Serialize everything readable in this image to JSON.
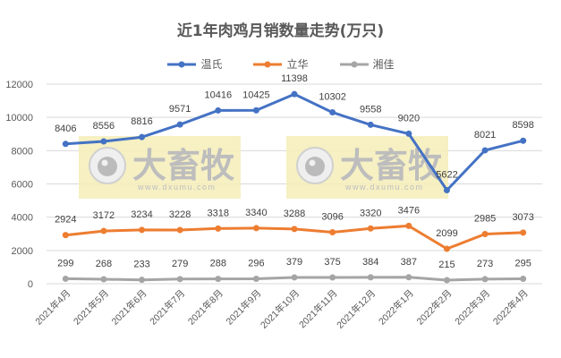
{
  "chart_data": {
    "type": "line",
    "title": "近1年肉鸡月销数量走势(万只)",
    "xlabel": "",
    "ylabel": "",
    "ylim": [
      0,
      12000
    ],
    "yticks": [
      0,
      2000,
      4000,
      6000,
      8000,
      10000,
      12000
    ],
    "grid": true,
    "legend_position": "top",
    "categories": [
      "2021年4月",
      "2021年5月",
      "2021年6月",
      "2021年7月",
      "2021年8月",
      "2021年9月",
      "2021年10月",
      "2021年11月",
      "2021年12月",
      "2022年1月",
      "2022年2月",
      "2022年3月",
      "2022年4月"
    ],
    "series": [
      {
        "name": "温氏",
        "color": "#4472C4",
        "values": [
          8406,
          8556,
          8816,
          9571,
          10416,
          10425,
          11398,
          10302,
          9558,
          9020,
          5622,
          8021,
          8598
        ]
      },
      {
        "name": "立华",
        "color": "#ED7D31",
        "values": [
          2924,
          3172,
          3234,
          3228,
          3318,
          3340,
          3288,
          3096,
          3320,
          3476,
          2099,
          2985,
          3073
        ]
      },
      {
        "name": "湘佳",
        "color": "#A5A5A5",
        "values": [
          299,
          268,
          233,
          279,
          288,
          296,
          379,
          375,
          384,
          387,
          215,
          273,
          295
        ]
      }
    ],
    "watermark": {
      "text": "大畜牧",
      "url_text": "www.dxumu.com"
    }
  }
}
